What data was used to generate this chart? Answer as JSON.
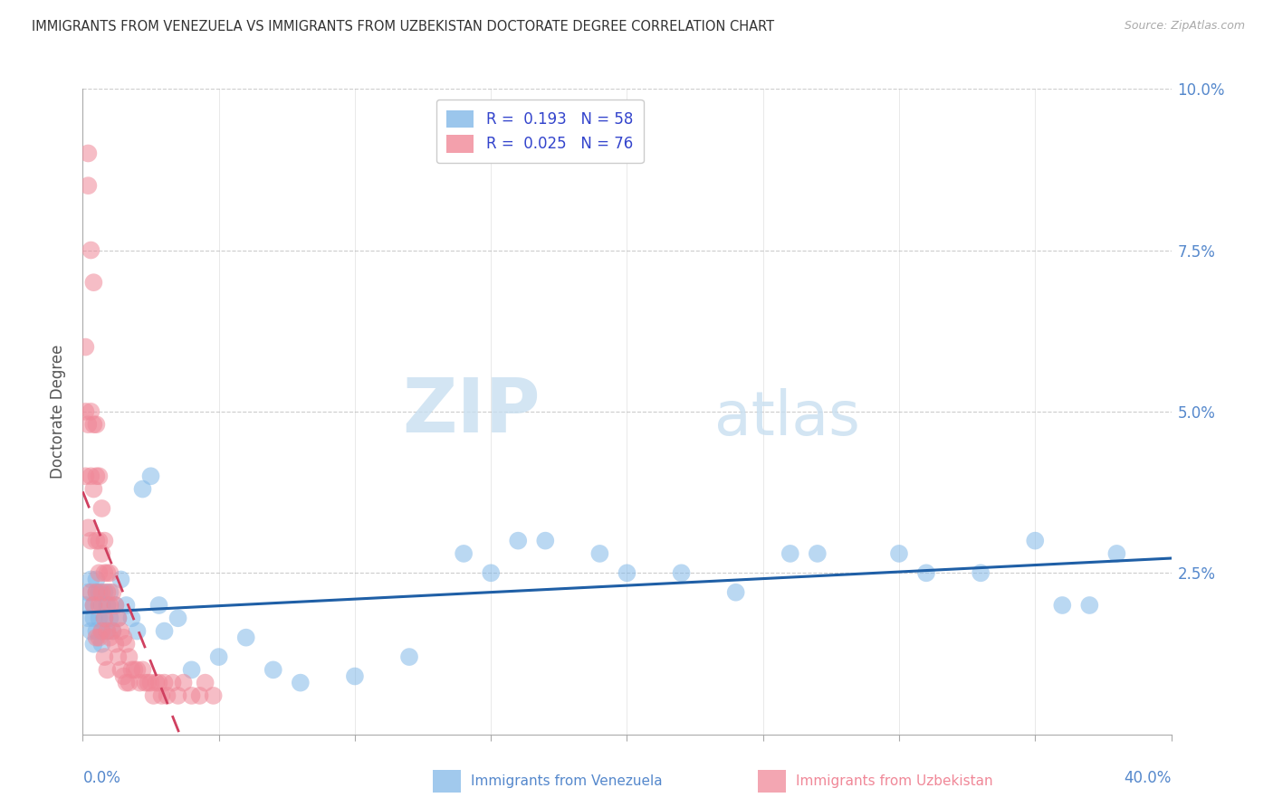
{
  "title": "IMMIGRANTS FROM VENEZUELA VS IMMIGRANTS FROM UZBEKISTAN DOCTORATE DEGREE CORRELATION CHART",
  "source": "Source: ZipAtlas.com",
  "ylabel": "Doctorate Degree",
  "xlim": [
    0.0,
    0.4
  ],
  "ylim": [
    0.0,
    0.1
  ],
  "watermark_zip": "ZIP",
  "watermark_atlas": "atlas",
  "legend_r1": "R =  0.193   N = 58",
  "legend_r2": "R =  0.025   N = 76",
  "blue_color": "#82b8e8",
  "pink_color": "#f08898",
  "blue_line_color": "#1f5fa6",
  "pink_line_color": "#d04060",
  "axis_label_color": "#5588cc",
  "title_color": "#333333",
  "grid_color": "#cccccc",
  "legend_text_color": "#3344cc",
  "venezuela_x": [
    0.001,
    0.002,
    0.002,
    0.003,
    0.003,
    0.004,
    0.004,
    0.004,
    0.005,
    0.005,
    0.005,
    0.006,
    0.006,
    0.007,
    0.007,
    0.007,
    0.008,
    0.008,
    0.009,
    0.009,
    0.01,
    0.01,
    0.011,
    0.012,
    0.013,
    0.014,
    0.016,
    0.018,
    0.02,
    0.022,
    0.025,
    0.028,
    0.03,
    0.035,
    0.04,
    0.05,
    0.06,
    0.07,
    0.08,
    0.1,
    0.12,
    0.14,
    0.16,
    0.19,
    0.22,
    0.26,
    0.3,
    0.33,
    0.36,
    0.38,
    0.15,
    0.17,
    0.2,
    0.24,
    0.27,
    0.31,
    0.35,
    0.37
  ],
  "venezuela_y": [
    0.02,
    0.018,
    0.022,
    0.016,
    0.024,
    0.014,
    0.02,
    0.018,
    0.022,
    0.016,
    0.024,
    0.018,
    0.022,
    0.014,
    0.02,
    0.016,
    0.022,
    0.018,
    0.016,
    0.02,
    0.018,
    0.022,
    0.016,
    0.02,
    0.018,
    0.024,
    0.02,
    0.018,
    0.016,
    0.038,
    0.04,
    0.02,
    0.016,
    0.018,
    0.01,
    0.012,
    0.015,
    0.01,
    0.008,
    0.009,
    0.012,
    0.028,
    0.03,
    0.028,
    0.025,
    0.028,
    0.028,
    0.025,
    0.02,
    0.028,
    0.025,
    0.03,
    0.025,
    0.022,
    0.028,
    0.025,
    0.03,
    0.02
  ],
  "uzbekistan_x": [
    0.001,
    0.001,
    0.001,
    0.002,
    0.002,
    0.002,
    0.002,
    0.003,
    0.003,
    0.003,
    0.003,
    0.003,
    0.004,
    0.004,
    0.004,
    0.004,
    0.005,
    0.005,
    0.005,
    0.005,
    0.005,
    0.006,
    0.006,
    0.006,
    0.006,
    0.006,
    0.007,
    0.007,
    0.007,
    0.007,
    0.008,
    0.008,
    0.008,
    0.008,
    0.009,
    0.009,
    0.009,
    0.009,
    0.01,
    0.01,
    0.01,
    0.011,
    0.011,
    0.012,
    0.012,
    0.013,
    0.013,
    0.014,
    0.014,
    0.015,
    0.015,
    0.016,
    0.016,
    0.017,
    0.017,
    0.018,
    0.019,
    0.02,
    0.021,
    0.022,
    0.023,
    0.024,
    0.025,
    0.026,
    0.027,
    0.028,
    0.029,
    0.03,
    0.031,
    0.033,
    0.035,
    0.037,
    0.04,
    0.043,
    0.045,
    0.048
  ],
  "uzbekistan_y": [
    0.06,
    0.05,
    0.04,
    0.09,
    0.085,
    0.048,
    0.032,
    0.075,
    0.05,
    0.04,
    0.03,
    0.022,
    0.07,
    0.048,
    0.038,
    0.02,
    0.048,
    0.04,
    0.03,
    0.022,
    0.015,
    0.04,
    0.03,
    0.025,
    0.02,
    0.015,
    0.035,
    0.028,
    0.022,
    0.016,
    0.03,
    0.025,
    0.018,
    0.012,
    0.025,
    0.022,
    0.016,
    0.01,
    0.025,
    0.02,
    0.015,
    0.022,
    0.016,
    0.02,
    0.014,
    0.018,
    0.012,
    0.016,
    0.01,
    0.015,
    0.009,
    0.014,
    0.008,
    0.012,
    0.008,
    0.01,
    0.01,
    0.01,
    0.008,
    0.01,
    0.008,
    0.008,
    0.008,
    0.006,
    0.008,
    0.008,
    0.006,
    0.008,
    0.006,
    0.008,
    0.006,
    0.008,
    0.006,
    0.006,
    0.008,
    0.006
  ]
}
